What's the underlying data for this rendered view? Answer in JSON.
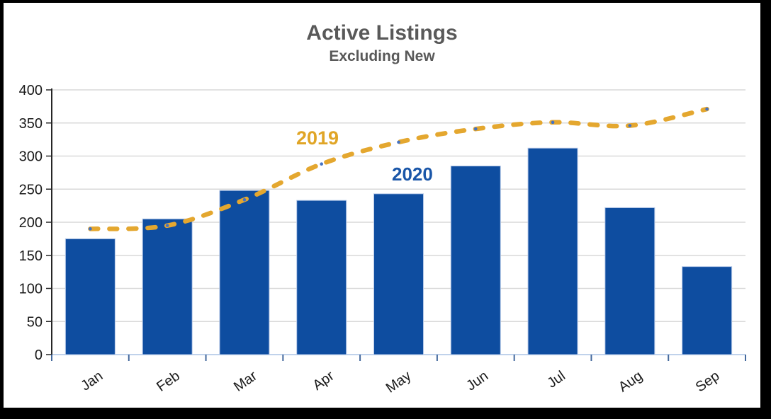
{
  "header": {
    "title": "Active Listings",
    "subtitle": "Excluding New",
    "title_color": "#595959"
  },
  "chart_data": {
    "type": "combo",
    "title": "Active Listings",
    "subtitle": "Excluding New",
    "categories": [
      "Jan",
      "Feb",
      "Mar",
      "Apr",
      "May",
      "Jun",
      "Jul",
      "Aug",
      "Sep"
    ],
    "series": [
      {
        "name": "2020",
        "type": "bar",
        "color": "#0E4DA0",
        "edge_color": "#B4C7E7",
        "label_color": "#1A56A8",
        "values": [
          175,
          205,
          248,
          233,
          243,
          285,
          312,
          222,
          133
        ]
      },
      {
        "name": "2019",
        "type": "line",
        "style": "dashed",
        "color": "#E4A72F",
        "marker_color": "#4472C4",
        "label_color": "#E0A526",
        "values": [
          190,
          195,
          234,
          288,
          321,
          341,
          351,
          346,
          371
        ]
      }
    ],
    "xlabel": "",
    "ylabel": "",
    "ylim": [
      0,
      400
    ],
    "ytick_step": 50,
    "yticks": [
      0,
      50,
      100,
      150,
      200,
      250,
      300,
      350,
      400
    ],
    "grid": "horizontal",
    "legend_position": "inline-labels",
    "axis_colors": {
      "gridline": "#D9D9D9",
      "y_axis": "#262626",
      "y_tick": "#262626",
      "x_axis": "#B7CCE8",
      "x_tick": "#44699D",
      "tick_label": "#1A1A1A"
    }
  }
}
